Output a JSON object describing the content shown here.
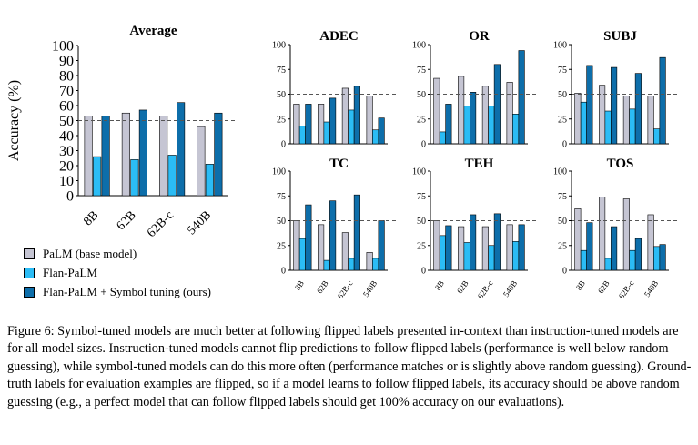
{
  "legend": [
    {
      "label": "PaLM (base model)",
      "color": "#c5c5d3"
    },
    {
      "label": "Flan-PaLM",
      "color": "#2bbcf5"
    },
    {
      "label": "Flan-PaLM + Symbol tuning (ours)",
      "color": "#0d6eaa"
    }
  ],
  "caption": "Figure 6: Symbol-tuned models are much better at following flipped labels presented in-context than instruction-tuned models are for all model sizes. Instruction-tuned models cannot flip predictions to follow flipped labels (performance is well below random guessing), while symbol-tuned models can do this more often (performance matches or is slightly above random guessing). Ground-truth labels for evaluation examples are flipped, so if a model learns to follow flipped labels, its accuracy should be above random guessing (e.g., a perfect model that can follow flipped labels should get 100% accuracy on our evaluations).",
  "chart_data": [
    {
      "type": "bar",
      "title": "Average",
      "ylabel": "Accuracy (%)",
      "ylim": [
        0,
        100
      ],
      "yticks": [
        0,
        10,
        20,
        30,
        40,
        50,
        60,
        70,
        80,
        90,
        100
      ],
      "categories": [
        "8B",
        "62B",
        "62B-c",
        "540B"
      ],
      "reference_line": 50,
      "series": [
        {
          "name": "PaLM (base model)",
          "values": [
            53,
            55,
            53,
            46
          ]
        },
        {
          "name": "Flan-PaLM",
          "values": [
            26,
            24,
            27,
            21
          ]
        },
        {
          "name": "Flan-PaLM + Symbol tuning (ours)",
          "values": [
            53,
            57,
            62,
            55
          ]
        }
      ]
    },
    {
      "type": "bar",
      "title": "ADEC",
      "ylim": [
        0,
        100
      ],
      "yticks": [
        0,
        25,
        50,
        75,
        100
      ],
      "categories": [
        "8B",
        "62B",
        "62B-c",
        "540B"
      ],
      "reference_line": 50,
      "series": [
        {
          "name": "PaLM (base model)",
          "values": [
            40,
            40,
            56,
            48
          ]
        },
        {
          "name": "Flan-PaLM",
          "values": [
            18,
            22,
            34,
            14
          ]
        },
        {
          "name": "Flan-PaLM + Symbol tuning (ours)",
          "values": [
            40,
            46,
            58,
            26
          ]
        }
      ]
    },
    {
      "type": "bar",
      "title": "OR",
      "ylim": [
        0,
        100
      ],
      "yticks": [
        0,
        25,
        50,
        75,
        100
      ],
      "categories": [
        "8B",
        "62B",
        "62B-c",
        "540B"
      ],
      "reference_line": 50,
      "series": [
        {
          "name": "PaLM (base model)",
          "values": [
            66,
            68,
            58,
            62
          ]
        },
        {
          "name": "Flan-PaLM",
          "values": [
            12,
            38,
            38,
            30
          ]
        },
        {
          "name": "Flan-PaLM + Symbol tuning (ours)",
          "values": [
            40,
            52,
            80,
            94
          ]
        }
      ]
    },
    {
      "type": "bar",
      "title": "SUBJ",
      "ylim": [
        0,
        100
      ],
      "yticks": [
        0,
        25,
        50,
        75,
        100
      ],
      "categories": [
        "8B",
        "62B",
        "62B-c",
        "540B"
      ],
      "reference_line": 50,
      "series": [
        {
          "name": "PaLM (base model)",
          "values": [
            51,
            59,
            48,
            48
          ]
        },
        {
          "name": "Flan-PaLM",
          "values": [
            42,
            33,
            35,
            15
          ]
        },
        {
          "name": "Flan-PaLM + Symbol tuning (ours)",
          "values": [
            79,
            77,
            71,
            87
          ]
        }
      ]
    },
    {
      "type": "bar",
      "title": "TC",
      "ylim": [
        0,
        100
      ],
      "yticks": [
        0,
        25,
        50,
        75,
        100
      ],
      "categories": [
        "8B",
        "62B",
        "62B-c",
        "540B"
      ],
      "reference_line": 50,
      "series": [
        {
          "name": "PaLM (base model)",
          "values": [
            50,
            46,
            38,
            18
          ]
        },
        {
          "name": "Flan-PaLM",
          "values": [
            32,
            10,
            12,
            12
          ]
        },
        {
          "name": "Flan-PaLM + Symbol tuning (ours)",
          "values": [
            66,
            70,
            76,
            50
          ]
        }
      ]
    },
    {
      "type": "bar",
      "title": "TEH",
      "ylim": [
        0,
        100
      ],
      "yticks": [
        0,
        25,
        50,
        75,
        100
      ],
      "categories": [
        "8B",
        "62B",
        "62B-c",
        "540B"
      ],
      "reference_line": 50,
      "series": [
        {
          "name": "PaLM (base model)",
          "values": [
            50,
            44,
            44,
            46
          ]
        },
        {
          "name": "Flan-PaLM",
          "values": [
            35,
            28,
            25,
            29
          ]
        },
        {
          "name": "Flan-PaLM + Symbol tuning (ours)",
          "values": [
            45,
            56,
            57,
            46
          ]
        }
      ]
    },
    {
      "type": "bar",
      "title": "TOS",
      "ylim": [
        0,
        100
      ],
      "yticks": [
        0,
        25,
        50,
        75,
        100
      ],
      "categories": [
        "8B",
        "62B",
        "62B-c",
        "540B"
      ],
      "reference_line": 50,
      "series": [
        {
          "name": "PaLM (base model)",
          "values": [
            62,
            74,
            72,
            56
          ]
        },
        {
          "name": "Flan-PaLM",
          "values": [
            20,
            12,
            20,
            24
          ]
        },
        {
          "name": "Flan-PaLM + Symbol tuning (ours)",
          "values": [
            48,
            44,
            32,
            26
          ]
        }
      ]
    }
  ]
}
